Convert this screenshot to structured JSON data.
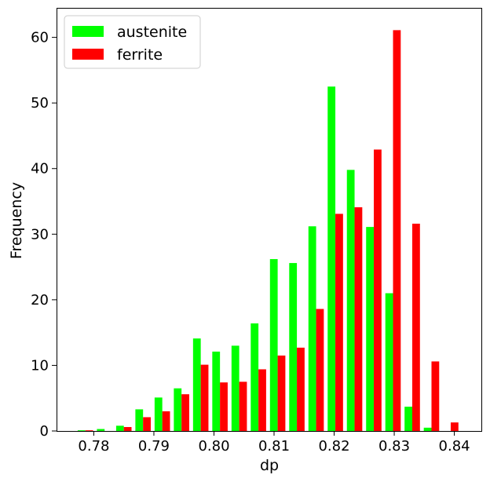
{
  "chart_data": {
    "type": "bar",
    "xlabel": "dp",
    "ylabel": "Frequency",
    "xlim": [
      0.7738,
      0.8445
    ],
    "ylim": [
      0,
      64.5
    ],
    "xticks": [
      {
        "value": 0.78,
        "label": "0.78"
      },
      {
        "value": 0.79,
        "label": "0.79"
      },
      {
        "value": 0.8,
        "label": "0.80"
      },
      {
        "value": 0.81,
        "label": "0.81"
      },
      {
        "value": 0.82,
        "label": "0.82"
      },
      {
        "value": 0.83,
        "label": "0.83"
      },
      {
        "value": 0.84,
        "label": "0.84"
      }
    ],
    "yticks": [
      {
        "value": 0,
        "label": "0"
      },
      {
        "value": 10,
        "label": "10"
      },
      {
        "value": 20,
        "label": "20"
      },
      {
        "value": 30,
        "label": "30"
      },
      {
        "value": 40,
        "label": "40"
      },
      {
        "value": 50,
        "label": "50"
      },
      {
        "value": 60,
        "label": "60"
      }
    ],
    "bin_edges": [
      0.777,
      0.7802,
      0.7834,
      0.7866,
      0.7898,
      0.793,
      0.7962,
      0.7994,
      0.8026,
      0.8058,
      0.809,
      0.8122,
      0.8154,
      0.8186,
      0.8218,
      0.825,
      0.8282,
      0.8314,
      0.8346,
      0.8378,
      0.841
    ],
    "series": [
      {
        "name": "austenite",
        "color": "#00ff00",
        "values": [
          0.1,
          0.3,
          0.8,
          3.3,
          5.1,
          6.5,
          14.1,
          12.1,
          13.0,
          16.4,
          26.2,
          25.6,
          31.2,
          52.5,
          39.8,
          31.1,
          21.0,
          3.7,
          0.5,
          0.0
        ]
      },
      {
        "name": "ferrite",
        "color": "#ff0000",
        "values": [
          0.1,
          0.0,
          0.6,
          2.1,
          3.0,
          5.6,
          10.1,
          7.4,
          7.5,
          9.4,
          11.5,
          12.7,
          18.6,
          33.1,
          34.1,
          42.9,
          61.1,
          31.6,
          10.6,
          1.3
        ]
      }
    ],
    "legend_position": "upper-left",
    "grid": false
  }
}
